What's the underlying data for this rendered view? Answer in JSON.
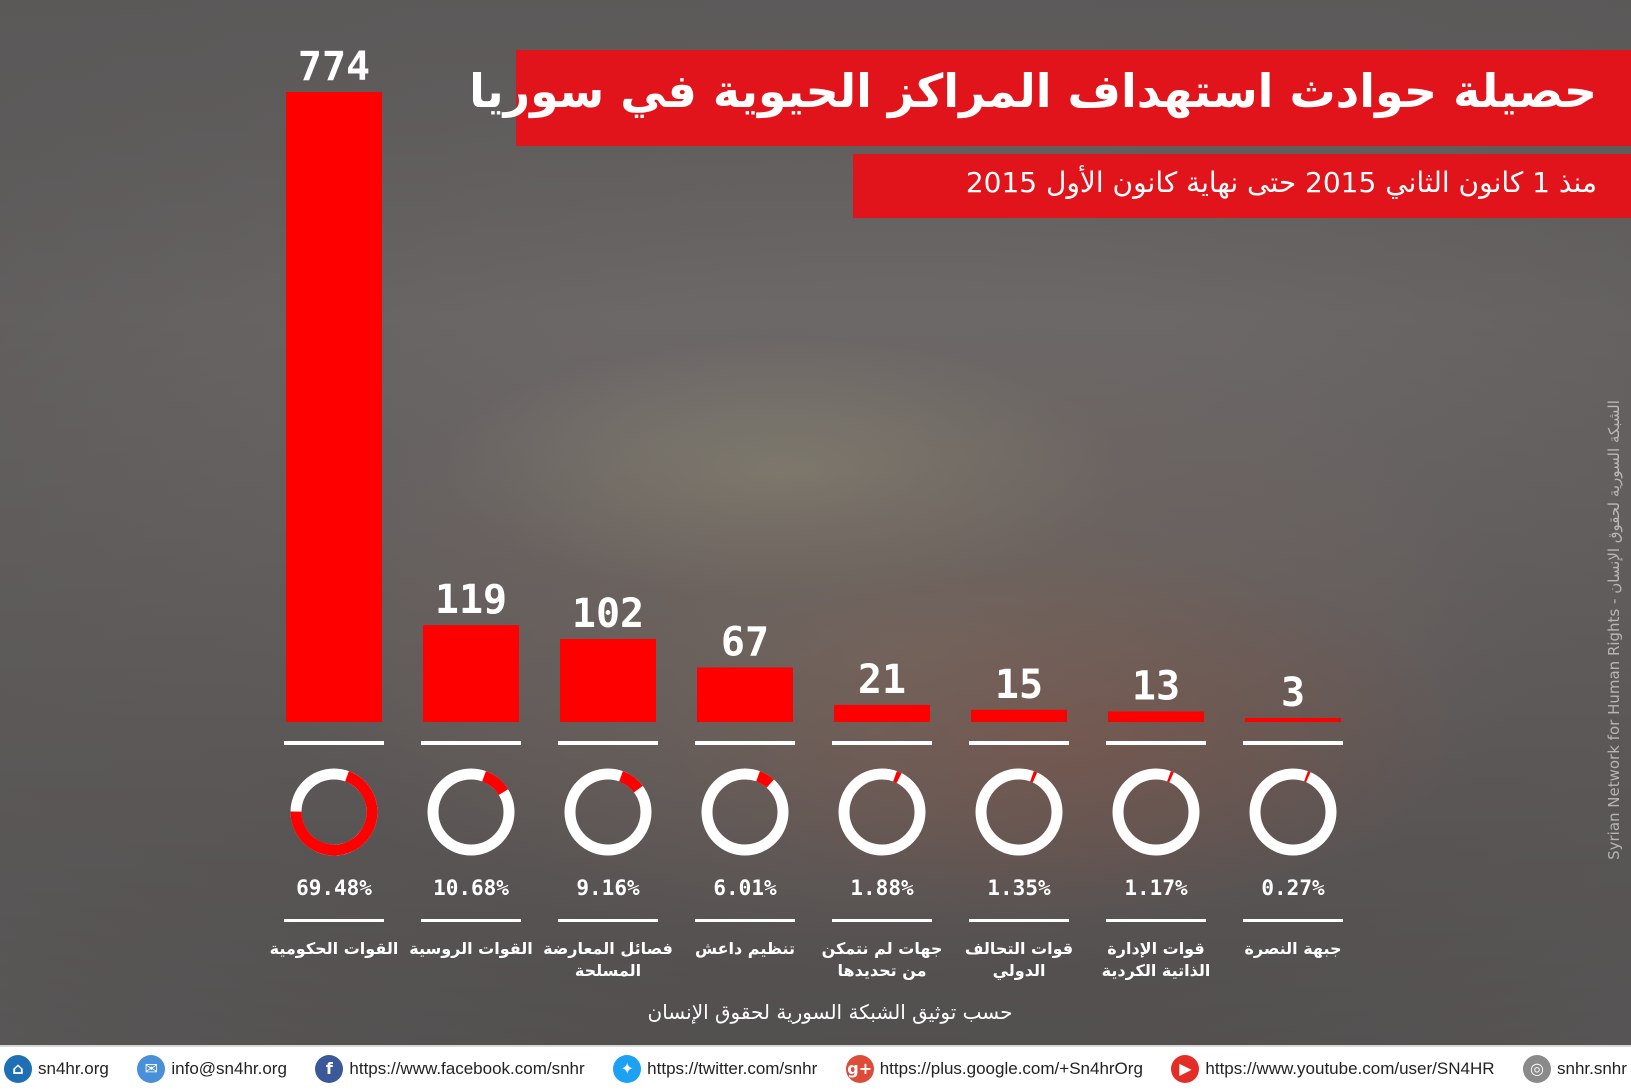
{
  "header": {
    "title": "حصيلة حوادث استهداف المراكز الحيوية في سوريا",
    "subtitle": "منذ 1 كانون الثاني 2015 حتى نهاية كانون الأول 2015"
  },
  "side_text": "Syrian Network for Human Rights - الشبكة السورية لحقوق الإنسان",
  "source_note": "حسب توثيق الشبكة السورية لحقوق الإنسان",
  "colors": {
    "accent": "#e2141b",
    "text": "#ffffff"
  },
  "chart_data": {
    "type": "bar",
    "categories": [
      "القوات الحكومية",
      "القوات الروسية",
      "فصائل المعارضة المسلحة",
      "تنظيم داعش",
      "جهات لم نتمكن من تحديدها",
      "قوات التحالف الدولي",
      "قوات الإدارة الذاتية الكردية",
      "جبهة النصرة"
    ],
    "category_lines": [
      [
        "القوات الحكومية"
      ],
      [
        "القوات الروسية"
      ],
      [
        "فصائل المعارضة",
        "المسلحة"
      ],
      [
        "تنظيم داعش"
      ],
      [
        "جهات لم نتمكن",
        "من تحديدها"
      ],
      [
        "قوات التحالف",
        "الدولي"
      ],
      [
        "قوات الإدارة",
        "الذاتية الكردية"
      ],
      [
        "جبهة النصرة"
      ]
    ],
    "values": [
      774,
      119,
      102,
      67,
      21,
      15,
      13,
      3
    ],
    "value_labels": [
      "774",
      "119",
      "102",
      "67",
      "21",
      "15",
      "13",
      "3"
    ],
    "percentages": [
      69.48,
      10.68,
      9.16,
      6.01,
      1.88,
      1.35,
      1.17,
      0.27
    ],
    "percentage_labels": [
      "69.48%",
      "10.68%",
      "9.16%",
      "6.01%",
      "1.88%",
      "1.35%",
      "1.17%",
      "0.27%"
    ],
    "ylim": [
      0,
      774
    ],
    "grid": false,
    "bar_color": "#ff0000"
  },
  "footer": {
    "items": [
      {
        "icon": "home-icon",
        "text": "sn4hr.org",
        "color": "#1f6fb5"
      },
      {
        "icon": "mail-icon",
        "text": "info@sn4hr.org",
        "color": "#4a90d9"
      },
      {
        "icon": "facebook-icon",
        "text": "https://www.facebook.com/snhr",
        "color": "#3b5998"
      },
      {
        "icon": "twitter-icon",
        "text": "https://twitter.com/snhr",
        "color": "#1da1f2"
      },
      {
        "icon": "google-plus-icon",
        "text": "https://plus.google.com/+Sn4hrOrg",
        "color": "#dd4b39"
      },
      {
        "icon": "youtube-icon",
        "text": "https://www.youtube.com/user/SN4HR",
        "color": "#e52d27"
      },
      {
        "icon": "instagram-icon",
        "text": "snhr.snhr",
        "color": "#8a8a8a"
      }
    ]
  }
}
